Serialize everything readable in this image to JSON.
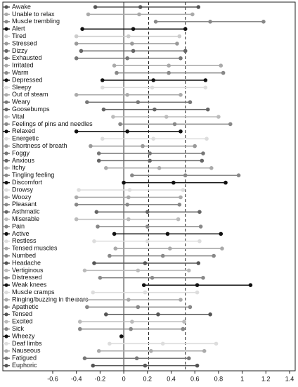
{
  "chart_data": {
    "type": "dot-range",
    "categories": [
      "Awake",
      "Unable to relax",
      "Muscle trembling",
      "Alert",
      "Tired",
      "Stressed",
      "Dizzy",
      "Exhausted",
      "Irritated",
      "Warm",
      "Depressed",
      "Sleepy",
      "Out of steam",
      "Weary",
      "Goosebumps",
      "Vital",
      "Feelings of pins and needles",
      "Relaxed",
      "Energetic",
      "Shortness of breath",
      "Foggy",
      "Anxious",
      "Itchy",
      "Tingling feeling",
      "Discomfort",
      "Drowsy",
      "Woozy",
      "Pleasant",
      "Asthmatic",
      "Miserable",
      "Pain",
      "Active",
      "Restless",
      "Tensed muscles",
      "Numbed",
      "Headache",
      "Vertiginous",
      "Distressed",
      "Weak knees",
      "Muscle cramps",
      "Ringing/buzzing in the ears",
      "Apathetic",
      "Tensed",
      "Excited",
      "Sick",
      "Wheezy",
      "Deaf limbs",
      "Nauseous",
      "Fatigued",
      "Euphoric"
    ],
    "values": [
      [
        -0.24,
        0.14,
        0.63
      ],
      [
        -0.3,
        0.13,
        0.58
      ],
      [
        0.27,
        0.73,
        1.18
      ],
      [
        -0.35,
        0.08,
        0.52
      ],
      [
        -0.4,
        0.04,
        0.47
      ],
      [
        -0.4,
        0.07,
        0.45
      ],
      [
        -0.36,
        0.08,
        0.52
      ],
      [
        -0.4,
        0.03,
        0.48
      ],
      [
        -0.08,
        0.38,
        0.82
      ],
      [
        -0.06,
        0.38,
        0.84
      ],
      [
        -0.18,
        0.25,
        0.69
      ],
      [
        -0.18,
        0.24,
        0.69
      ],
      [
        -0.4,
        0.03,
        0.48
      ],
      [
        -0.31,
        0.12,
        0.56
      ],
      [
        -0.17,
        0.26,
        0.71
      ],
      [
        -0.09,
        0.36,
        0.8
      ],
      [
        -0.03,
        0.43,
        0.9
      ],
      [
        -0.4,
        0.03,
        0.48
      ],
      [
        -0.18,
        0.25,
        0.7
      ],
      [
        -0.28,
        0.16,
        0.6
      ],
      [
        -0.21,
        0.22,
        0.67
      ],
      [
        -0.21,
        0.22,
        0.66
      ],
      [
        -0.15,
        0.3,
        0.74
      ],
      [
        0.07,
        0.52,
        0.97
      ],
      [
        0.0,
        0.42,
        0.86
      ],
      [
        -0.38,
        0.05,
        0.5
      ],
      [
        -0.4,
        0.04,
        0.48
      ],
      [
        -0.4,
        0.03,
        0.47
      ],
      [
        -0.23,
        0.2,
        0.64
      ],
      [
        -0.4,
        0.04,
        0.46
      ],
      [
        -0.22,
        0.2,
        0.65
      ],
      [
        -0.08,
        0.37,
        0.82
      ],
      [
        -0.25,
        0.2,
        0.64
      ],
      [
        -0.07,
        0.39,
        0.83
      ],
      [
        -0.12,
        0.33,
        0.76
      ],
      [
        -0.25,
        0.18,
        0.63
      ],
      [
        -0.33,
        0.12,
        0.55
      ],
      [
        -0.2,
        0.24,
        0.67
      ],
      [
        0.17,
        0.62,
        1.07
      ],
      [
        -0.26,
        0.18,
        0.62
      ],
      [
        -0.4,
        0.04,
        0.48
      ],
      [
        -0.31,
        0.12,
        0.56
      ],
      [
        -0.15,
        0.29,
        0.73
      ],
      [
        -0.37,
        0.07,
        0.51
      ],
      [
        -0.37,
        0.06,
        0.5
      ],
      [
        null,
        -0.02,
        null
      ],
      [
        -0.12,
        0.33,
        0.78
      ],
      [
        -0.21,
        0.23,
        0.68
      ],
      [
        -0.33,
        0.11,
        0.55
      ],
      [
        -0.26,
        0.18,
        0.62
      ]
    ],
    "colors": [
      "#555",
      "#aaa",
      "#888",
      "#111",
      "#ccc",
      "#999",
      "#666",
      "#777",
      "#aaa",
      "#888",
      "#111",
      "#ddd",
      "#aaa",
      "#777",
      "#666",
      "#bbb",
      "#888",
      "#111",
      "#ddd",
      "#999",
      "#777",
      "#666",
      "#aaa",
      "#888",
      "#111",
      "#ddd",
      "#aaa",
      "#888",
      "#666",
      "#bbb",
      "#888",
      "#111",
      "#ddd",
      "#aaa",
      "#888",
      "#555",
      "#bbb",
      "#888",
      "#111",
      "#ddd",
      "#aaa",
      "#888",
      "#555",
      "#bbb",
      "#888",
      "#111",
      "#ddd",
      "#aaa",
      "#777",
      "#555"
    ],
    "xlim": [
      -0.6,
      1.4
    ],
    "xticks": [
      -0.6,
      -0.4,
      -0.2,
      0,
      0.2,
      0.4,
      0.6,
      0.8,
      1,
      1.2,
      1.4
    ],
    "reference_lines": [
      {
        "value": 0,
        "style": "solid"
      },
      {
        "value": 0.21,
        "style": "dashed"
      },
      {
        "value": 0.52,
        "style": "dashed"
      }
    ]
  }
}
